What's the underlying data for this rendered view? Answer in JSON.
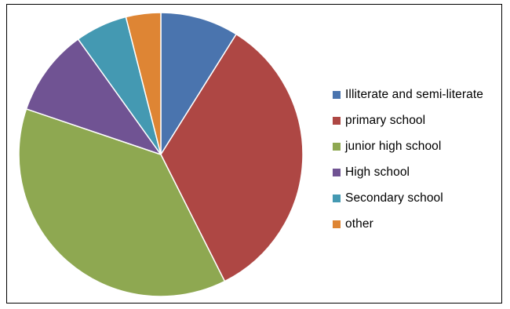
{
  "chart_data": {
    "type": "pie",
    "categories": [
      "Illiterate and semi-literate",
      "primary school",
      "junior high school",
      "High school",
      "Secondary school",
      "other"
    ],
    "values": [
      9,
      34,
      38,
      10,
      6,
      4
    ],
    "colors": [
      "#4a74ae",
      "#ae4744",
      "#8ea851",
      "#705393",
      "#4499b2",
      "#de8534"
    ],
    "legend_position": "right",
    "title": "",
    "start_angle": "12 o'clock",
    "direction": "clockwise"
  }
}
